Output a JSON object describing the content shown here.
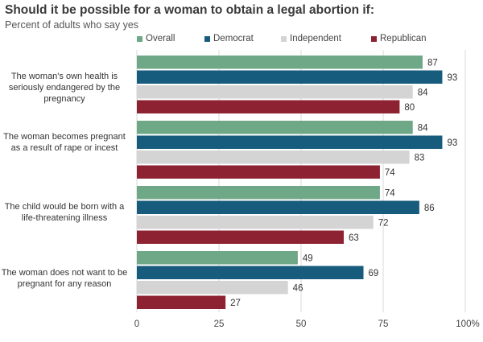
{
  "title": "Should it be possible for a woman to obtain a legal abortion if:",
  "subtitle": "Percent of adults who say yes",
  "chart_data": {
    "type": "bar",
    "orientation": "horizontal",
    "title": "Should it be possible for a woman to obtain a legal abortion if:",
    "subtitle": "Percent of adults who say yes",
    "categories": [
      "The woman's own health is seriously endangered by the pregnancy",
      "The woman becomes pregnant as a result of rape or incest",
      "The child would be born with a life-threatening illness",
      "The woman does not want to be pregnant for any reason"
    ],
    "series": [
      {
        "name": "Overall",
        "color": "#6ea887",
        "values": [
          87,
          84,
          74,
          49
        ]
      },
      {
        "name": "Democrat",
        "color": "#175c7c",
        "values": [
          93,
          93,
          86,
          69
        ]
      },
      {
        "name": "Independent",
        "color": "#d4d4d4",
        "values": [
          84,
          83,
          72,
          46
        ]
      },
      {
        "name": "Republican",
        "color": "#8c2232",
        "values": [
          80,
          74,
          63,
          27
        ]
      }
    ],
    "xlim": [
      0,
      100
    ],
    "xticks": [
      "0",
      "25",
      "50",
      "75",
      "100%"
    ],
    "grid": true,
    "legend_position": "top",
    "data_labels": true
  }
}
